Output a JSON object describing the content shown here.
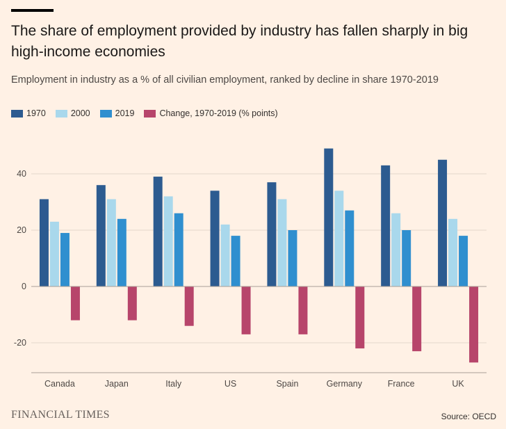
{
  "header": {
    "title": "The share of employment provided by industry has fallen sharply in big high-income economies",
    "subtitle": "Employment in industry as a % of all civilian employment, ranked by decline in share 1970-2019"
  },
  "footer": {
    "brand": "FINANCIAL TIMES",
    "source": "Source: OECD"
  },
  "colors": {
    "background": "#fff1e5",
    "gridline": "#e3d7cc",
    "zeroline": "#a89f97"
  },
  "chart_data": {
    "type": "bar",
    "title": "The share of employment provided by industry has fallen sharply in big high-income economies",
    "subtitle": "Employment in industry as a % of all civilian employment, ranked by decline in share 1970-2019",
    "categories": [
      "Canada",
      "Japan",
      "Italy",
      "US",
      "Spain",
      "Germany",
      "France",
      "UK"
    ],
    "series": [
      {
        "name": "1970",
        "color": "#2c5b90",
        "values": [
          31,
          36,
          39,
          34,
          37,
          49,
          43,
          45
        ]
      },
      {
        "name": "2000",
        "color": "#a9d8ec",
        "values": [
          23,
          31,
          32,
          22,
          31,
          34,
          26,
          24
        ]
      },
      {
        "name": "2019",
        "color": "#2f8fcf",
        "values": [
          19,
          24,
          26,
          18,
          20,
          27,
          20,
          18
        ]
      },
      {
        "name": "Change, 1970-2019 (% points)",
        "color": "#b7456b",
        "values": [
          -12,
          -12,
          -14,
          -17,
          -17,
          -22,
          -23,
          -27
        ]
      }
    ],
    "yticks": [
      40,
      20,
      0,
      -20
    ],
    "ylim": [
      -30,
      52
    ],
    "grid": true,
    "legend": "top-left",
    "source": "Source: OECD"
  }
}
